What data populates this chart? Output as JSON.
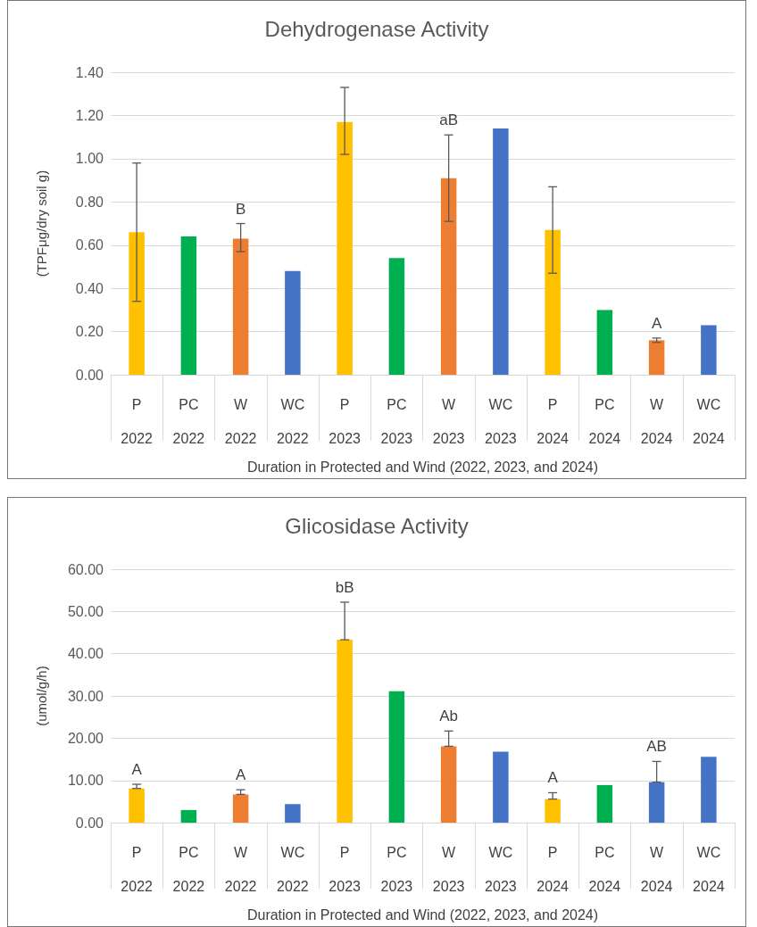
{
  "chart_data": [
    {
      "type": "bar",
      "title": "Dehydrogenase Activity",
      "xlabel": "Duration in Protected and Wind (2022, 2023, and 2024)",
      "ylabel": "(TPFμg/dry soil g)",
      "categories": [
        "P\n2022",
        "PC\n2022",
        "W\n2022",
        "WC\n2022",
        "P\n2023",
        "PC\n2023",
        "W\n2023",
        "WC\n2023",
        "P\n2024",
        "PC\n2024",
        "W\n2024",
        "WC\n2024"
      ],
      "values": [
        0.66,
        0.64,
        0.63,
        0.48,
        1.17,
        0.54,
        0.91,
        1.14,
        0.67,
        0.3,
        0.16,
        0.23
      ],
      "colors": [
        "#ffc000",
        "#00b050",
        "#ed7d31",
        "#4472c4",
        "#ffc000",
        "#00b050",
        "#ed7d31",
        "#4472c4",
        "#ffc000",
        "#00b050",
        "#ed7d31",
        "#4472c4"
      ],
      "errors": [
        [
          0.34,
          0.98
        ],
        null,
        [
          0.57,
          0.7
        ],
        null,
        [
          1.02,
          1.33
        ],
        null,
        [
          0.71,
          1.11
        ],
        null,
        [
          0.47,
          0.87
        ],
        null,
        [
          0.15,
          0.17
        ],
        null
      ],
      "ylim": [
        0,
        1.4
      ],
      "yticks": [
        {
          "value": 0,
          "label": "0.00"
        },
        {
          "value": 0.2,
          "label": "0.20"
        },
        {
          "value": 0.4,
          "label": "0.40"
        },
        {
          "value": 0.6,
          "label": "0.60"
        },
        {
          "value": 0.8,
          "label": "0.80"
        },
        {
          "value": 1.0,
          "label": "1.00"
        },
        {
          "value": 1.2,
          "label": "1.20"
        },
        {
          "value": 1.4,
          "label": "1.40"
        }
      ],
      "annotations": [
        {
          "text": "B",
          "x": "W\n2022",
          "y": 0.7
        },
        {
          "text": "aB",
          "x": "W\n2023",
          "y": 1.11
        },
        {
          "text": "A",
          "x": "W\n2024",
          "y": 0.17
        }
      ],
      "grid": "y"
    },
    {
      "type": "bar",
      "title": "Glicosidase Activity",
      "xlabel": "Duration in Protected and Wind (2022, 2023, and 2024)",
      "ylabel": "(umol/g/h)",
      "categories": [
        "P\n2022",
        "PC\n2022",
        "W\n2022",
        "WC\n2022",
        "P\n2023",
        "PC\n2023",
        "W\n2023",
        "WC\n2023",
        "P\n2024",
        "PC\n2024",
        "W\n2024",
        "WC\n2024"
      ],
      "values": [
        8.1,
        3.0,
        6.7,
        4.4,
        43.3,
        31.1,
        18.1,
        16.8,
        5.6,
        8.9,
        9.6,
        15.6
      ],
      "colors": [
        "#ffc000",
        "#00b050",
        "#ed7d31",
        "#4472c4",
        "#ffc000",
        "#00b050",
        "#ed7d31",
        "#4472c4",
        "#ffc000",
        "#00b050",
        "#4472c4",
        "#4472c4"
      ],
      "errors": [
        [
          8.1,
          9.1
        ],
        null,
        [
          6.7,
          7.8
        ],
        null,
        [
          43.3,
          52.2
        ],
        null,
        [
          18.1,
          21.7
        ],
        null,
        [
          5.6,
          7.1
        ],
        null,
        [
          9.6,
          14.5
        ],
        null
      ],
      "ylim": [
        0,
        60
      ],
      "yticks": [
        {
          "value": 0,
          "label": "0.00"
        },
        {
          "value": 10,
          "label": "10.00"
        },
        {
          "value": 20,
          "label": "20.00"
        },
        {
          "value": 30,
          "label": "30.00"
        },
        {
          "value": 40,
          "label": "40.00"
        },
        {
          "value": 50,
          "label": "50.00"
        },
        {
          "value": 60,
          "label": "60.00"
        }
      ],
      "annotations": [
        {
          "text": "A",
          "x": "P\n2022",
          "y": 9.1
        },
        {
          "text": "A",
          "x": "W\n2022",
          "y": 7.8
        },
        {
          "text": "bB",
          "x": "P\n2023",
          "y": 52.2
        },
        {
          "text": "Ab",
          "x": "W\n2023",
          "y": 21.7
        },
        {
          "text": "A",
          "x": "P\n2024",
          "y": 7.1
        },
        {
          "text": "AB",
          "x": "W\n2024",
          "y": 14.5
        }
      ],
      "grid": "y"
    }
  ]
}
